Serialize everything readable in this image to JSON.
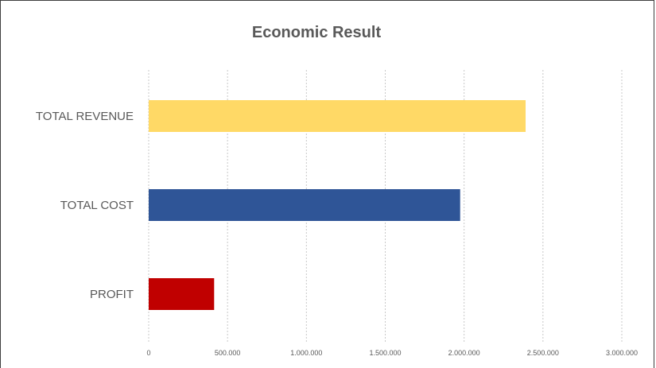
{
  "chart_data": {
    "type": "bar",
    "orientation": "horizontal",
    "title": "Economic Result",
    "xlabel": "",
    "ylabel": "",
    "categories": [
      "TOTAL REVENUE",
      "TOTAL COST",
      "PROFIT"
    ],
    "values": [
      2390000,
      1975000,
      415000
    ],
    "colors": [
      "#FFD966",
      "#2F5597",
      "#C00000"
    ],
    "xlim": [
      0,
      3000000
    ],
    "xticks": [
      0,
      500000,
      1000000,
      1500000,
      2000000,
      2500000,
      3000000
    ],
    "xtick_labels": [
      "0",
      "500.000",
      "1.000.000",
      "1.500.000",
      "2.000.000",
      "2.500.000",
      "3.000.000"
    ],
    "grid": "vertical dashed",
    "legend": "none"
  }
}
